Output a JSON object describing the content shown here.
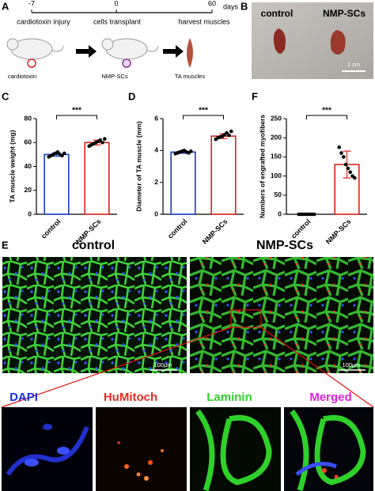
{
  "panel_a": {
    "letter": "A",
    "timeline_ticks": [
      -7,
      0,
      60
    ],
    "unit": "days",
    "events": [
      "cardiotoxin injury",
      "cells transplant",
      "harvest muscles"
    ],
    "icons": [
      "cardiotoxin",
      "NMP-SCs",
      "TA muscles"
    ]
  },
  "panel_b": {
    "letter": "B",
    "labels": [
      "control",
      "NMP-SCs"
    ],
    "scale_bar": "1 cm"
  },
  "panel_e": {
    "letter": "E",
    "groups": [
      "control",
      "NMP-SCs"
    ],
    "scale_bars": [
      "100μm",
      "100μm"
    ],
    "channels": [
      "DAPI",
      "HuMitoch",
      "Laminin",
      "Merged"
    ]
  },
  "chart_data": [
    {
      "type": "bar",
      "letter": "C",
      "ylabel": "TA muscle weight (mg)",
      "categories": [
        "control",
        "NMP-SCs"
      ],
      "colors": [
        "#1c3cc4",
        "#d7261e"
      ],
      "values": [
        50,
        60
      ],
      "errors": [
        1.5,
        2
      ],
      "points": [
        [
          48,
          49,
          50,
          51,
          52,
          50,
          49,
          51
        ],
        [
          57,
          58,
          59,
          60,
          61,
          62,
          60,
          63
        ]
      ],
      "ylim": [
        0,
        80
      ],
      "yticks": [
        0,
        20,
        40,
        60,
        80
      ],
      "significance": "***"
    },
    {
      "type": "bar",
      "letter": "D",
      "ylabel": "Diameter of TA muscle (mm)",
      "categories": [
        "control",
        "NMP-SCs"
      ],
      "colors": [
        "#1c3cc4",
        "#d7261e"
      ],
      "values": [
        3.9,
        4.9
      ],
      "errors": [
        0.08,
        0.15
      ],
      "points": [
        [
          3.8,
          3.85,
          3.9,
          3.95,
          4.0,
          3.9,
          3.85,
          3.95
        ],
        [
          4.7,
          4.8,
          4.85,
          4.9,
          5.0,
          5.1,
          4.95,
          5.2
        ]
      ],
      "ylim": [
        0,
        6
      ],
      "yticks": [
        0,
        2,
        4,
        6
      ],
      "significance": "***"
    },
    {
      "type": "bar",
      "letter": "F",
      "ylabel": "Numbers of engrafted myofibers",
      "categories": [
        "control",
        "NMP-SCs"
      ],
      "colors": [
        "#1c3cc4",
        "#d7261e"
      ],
      "values": [
        0,
        130
      ],
      "errors": [
        0,
        35
      ],
      "points": [
        [
          0,
          0,
          0,
          0,
          0,
          0,
          0,
          0
        ],
        [
          175,
          160,
          150,
          130,
          120,
          110,
          100,
          95
        ]
      ],
      "ylim": [
        0,
        250
      ],
      "yticks": [
        0,
        50,
        100,
        150,
        200,
        250
      ],
      "significance": "***"
    }
  ]
}
